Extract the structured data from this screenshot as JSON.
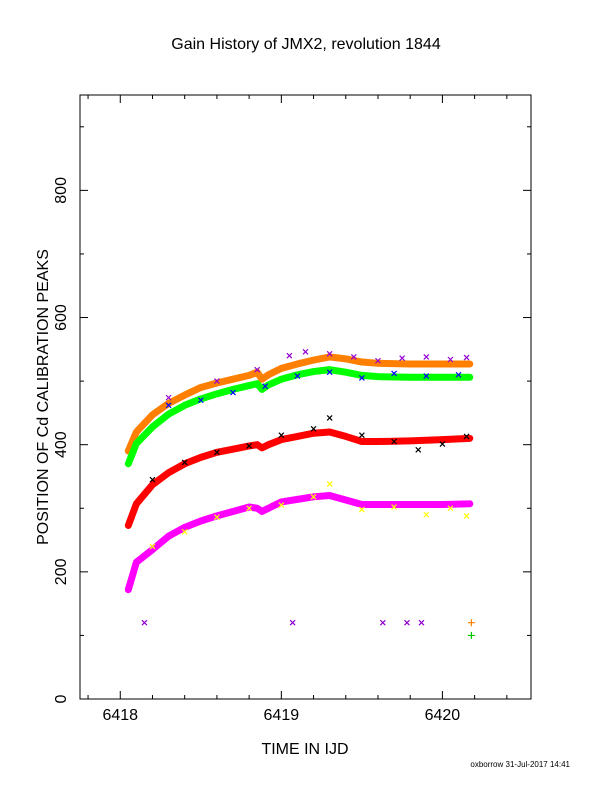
{
  "chart_data": {
    "type": "scatter",
    "title": "Gain History of JMX2, revolution 1844",
    "xlabel": "TIME IN IJD",
    "ylabel": "POSITION OF Cd CALIBRATION PEAKS",
    "xlim": [
      6417.75,
      6420.55
    ],
    "ylim": [
      0,
      950
    ],
    "xticks": [
      6418,
      6419,
      6420
    ],
    "yticks": [
      0,
      200,
      400,
      600,
      800
    ],
    "grid": false,
    "legend": "none",
    "series": [
      {
        "color": "#ff7f00",
        "marker": "line",
        "x": [
          6418.05,
          6418.1,
          6418.2,
          6418.3,
          6418.4,
          6418.5,
          6418.6,
          6418.7,
          6418.8,
          6418.85,
          6418.88,
          6418.92,
          6419.0,
          6419.1,
          6419.2,
          6419.3,
          6419.4,
          6419.5,
          6419.6,
          6419.8,
          6420.0,
          6420.17
        ],
        "y": [
          390,
          420,
          447,
          465,
          478,
          490,
          497,
          503,
          509,
          514,
          503,
          510,
          520,
          527,
          533,
          538,
          535,
          530,
          528,
          527,
          527,
          527
        ]
      },
      {
        "color": "#00ff00",
        "marker": "line",
        "x": [
          6418.05,
          6418.1,
          6418.2,
          6418.3,
          6418.4,
          6418.5,
          6418.6,
          6418.7,
          6418.8,
          6418.85,
          6418.88,
          6418.92,
          6419.0,
          6419.1,
          6419.2,
          6419.3,
          6419.4,
          6419.5,
          6419.6,
          6419.8,
          6420.0,
          6420.17
        ],
        "y": [
          370,
          402,
          428,
          448,
          462,
          472,
          480,
          487,
          493,
          496,
          487,
          494,
          503,
          510,
          515,
          518,
          514,
          509,
          507,
          506,
          506,
          506
        ]
      },
      {
        "color": "#ff0000",
        "marker": "line",
        "x": [
          6418.05,
          6418.1,
          6418.2,
          6418.3,
          6418.4,
          6418.5,
          6418.6,
          6418.7,
          6418.8,
          6418.85,
          6418.88,
          6418.92,
          6419.0,
          6419.1,
          6419.2,
          6419.3,
          6419.4,
          6419.5,
          6419.6,
          6419.8,
          6420.0,
          6420.17
        ],
        "y": [
          273,
          307,
          337,
          356,
          370,
          380,
          388,
          393,
          398,
          400,
          395,
          400,
          408,
          413,
          418,
          420,
          413,
          405,
          405,
          406,
          408,
          410
        ]
      },
      {
        "color": "#ff00ff",
        "marker": "line",
        "x": [
          6418.05,
          6418.1,
          6418.2,
          6418.3,
          6418.4,
          6418.5,
          6418.6,
          6418.7,
          6418.8,
          6418.85,
          6418.88,
          6418.92,
          6419.0,
          6419.1,
          6419.2,
          6419.3,
          6419.4,
          6419.5,
          6419.6,
          6419.8,
          6420.0,
          6420.17
        ],
        "y": [
          172,
          215,
          235,
          256,
          270,
          280,
          288,
          295,
          302,
          300,
          295,
          300,
          310,
          314,
          318,
          320,
          313,
          306,
          306,
          306,
          306,
          307
        ]
      },
      {
        "color": "#9400d3",
        "marker": "x",
        "x": [
          6418.3,
          6418.6,
          6418.85,
          6419.05,
          6419.15,
          6419.3,
          6419.45,
          6419.6,
          6419.75,
          6419.9,
          6420.05,
          6420.15,
          6418.15,
          6419.07,
          6419.63,
          6419.78,
          6419.87
        ],
        "y": [
          474,
          500,
          518,
          540,
          546,
          543,
          538,
          532,
          536,
          538,
          534,
          537,
          120,
          120,
          120,
          120,
          120
        ]
      },
      {
        "color": "#0000ff",
        "marker": "x",
        "x": [
          6418.3,
          6418.5,
          6418.7,
          6418.9,
          6419.1,
          6419.3,
          6419.5,
          6419.7,
          6419.9,
          6420.1
        ],
        "y": [
          462,
          470,
          482,
          492,
          508,
          514,
          505,
          512,
          508,
          510
        ]
      },
      {
        "color": "#000000",
        "marker": "x",
        "x": [
          6418.2,
          6418.4,
          6418.6,
          6418.8,
          6419.0,
          6419.2,
          6419.3,
          6419.5,
          6419.7,
          6419.85,
          6420.0,
          6420.15
        ],
        "y": [
          345,
          372,
          388,
          398,
          415,
          425,
          442,
          415,
          405,
          392,
          401,
          413
        ]
      },
      {
        "color": "#ffff00",
        "marker": "x",
        "x": [
          6418.2,
          6418.4,
          6418.6,
          6418.8,
          6419.0,
          6419.2,
          6419.3,
          6419.5,
          6419.7,
          6419.9,
          6420.05,
          6420.15
        ],
        "y": [
          240,
          263,
          286,
          300,
          305,
          318,
          338,
          298,
          302,
          290,
          300,
          288
        ]
      },
      {
        "color": "#ff7f00",
        "marker": "+",
        "x": [
          6420.18
        ],
        "y": [
          120
        ]
      },
      {
        "color": "#00c800",
        "marker": "+",
        "x": [
          6420.18
        ],
        "y": [
          100
        ]
      }
    ]
  },
  "footer": {
    "credit": "oxborrow 31-Jul-2017 14:41"
  }
}
